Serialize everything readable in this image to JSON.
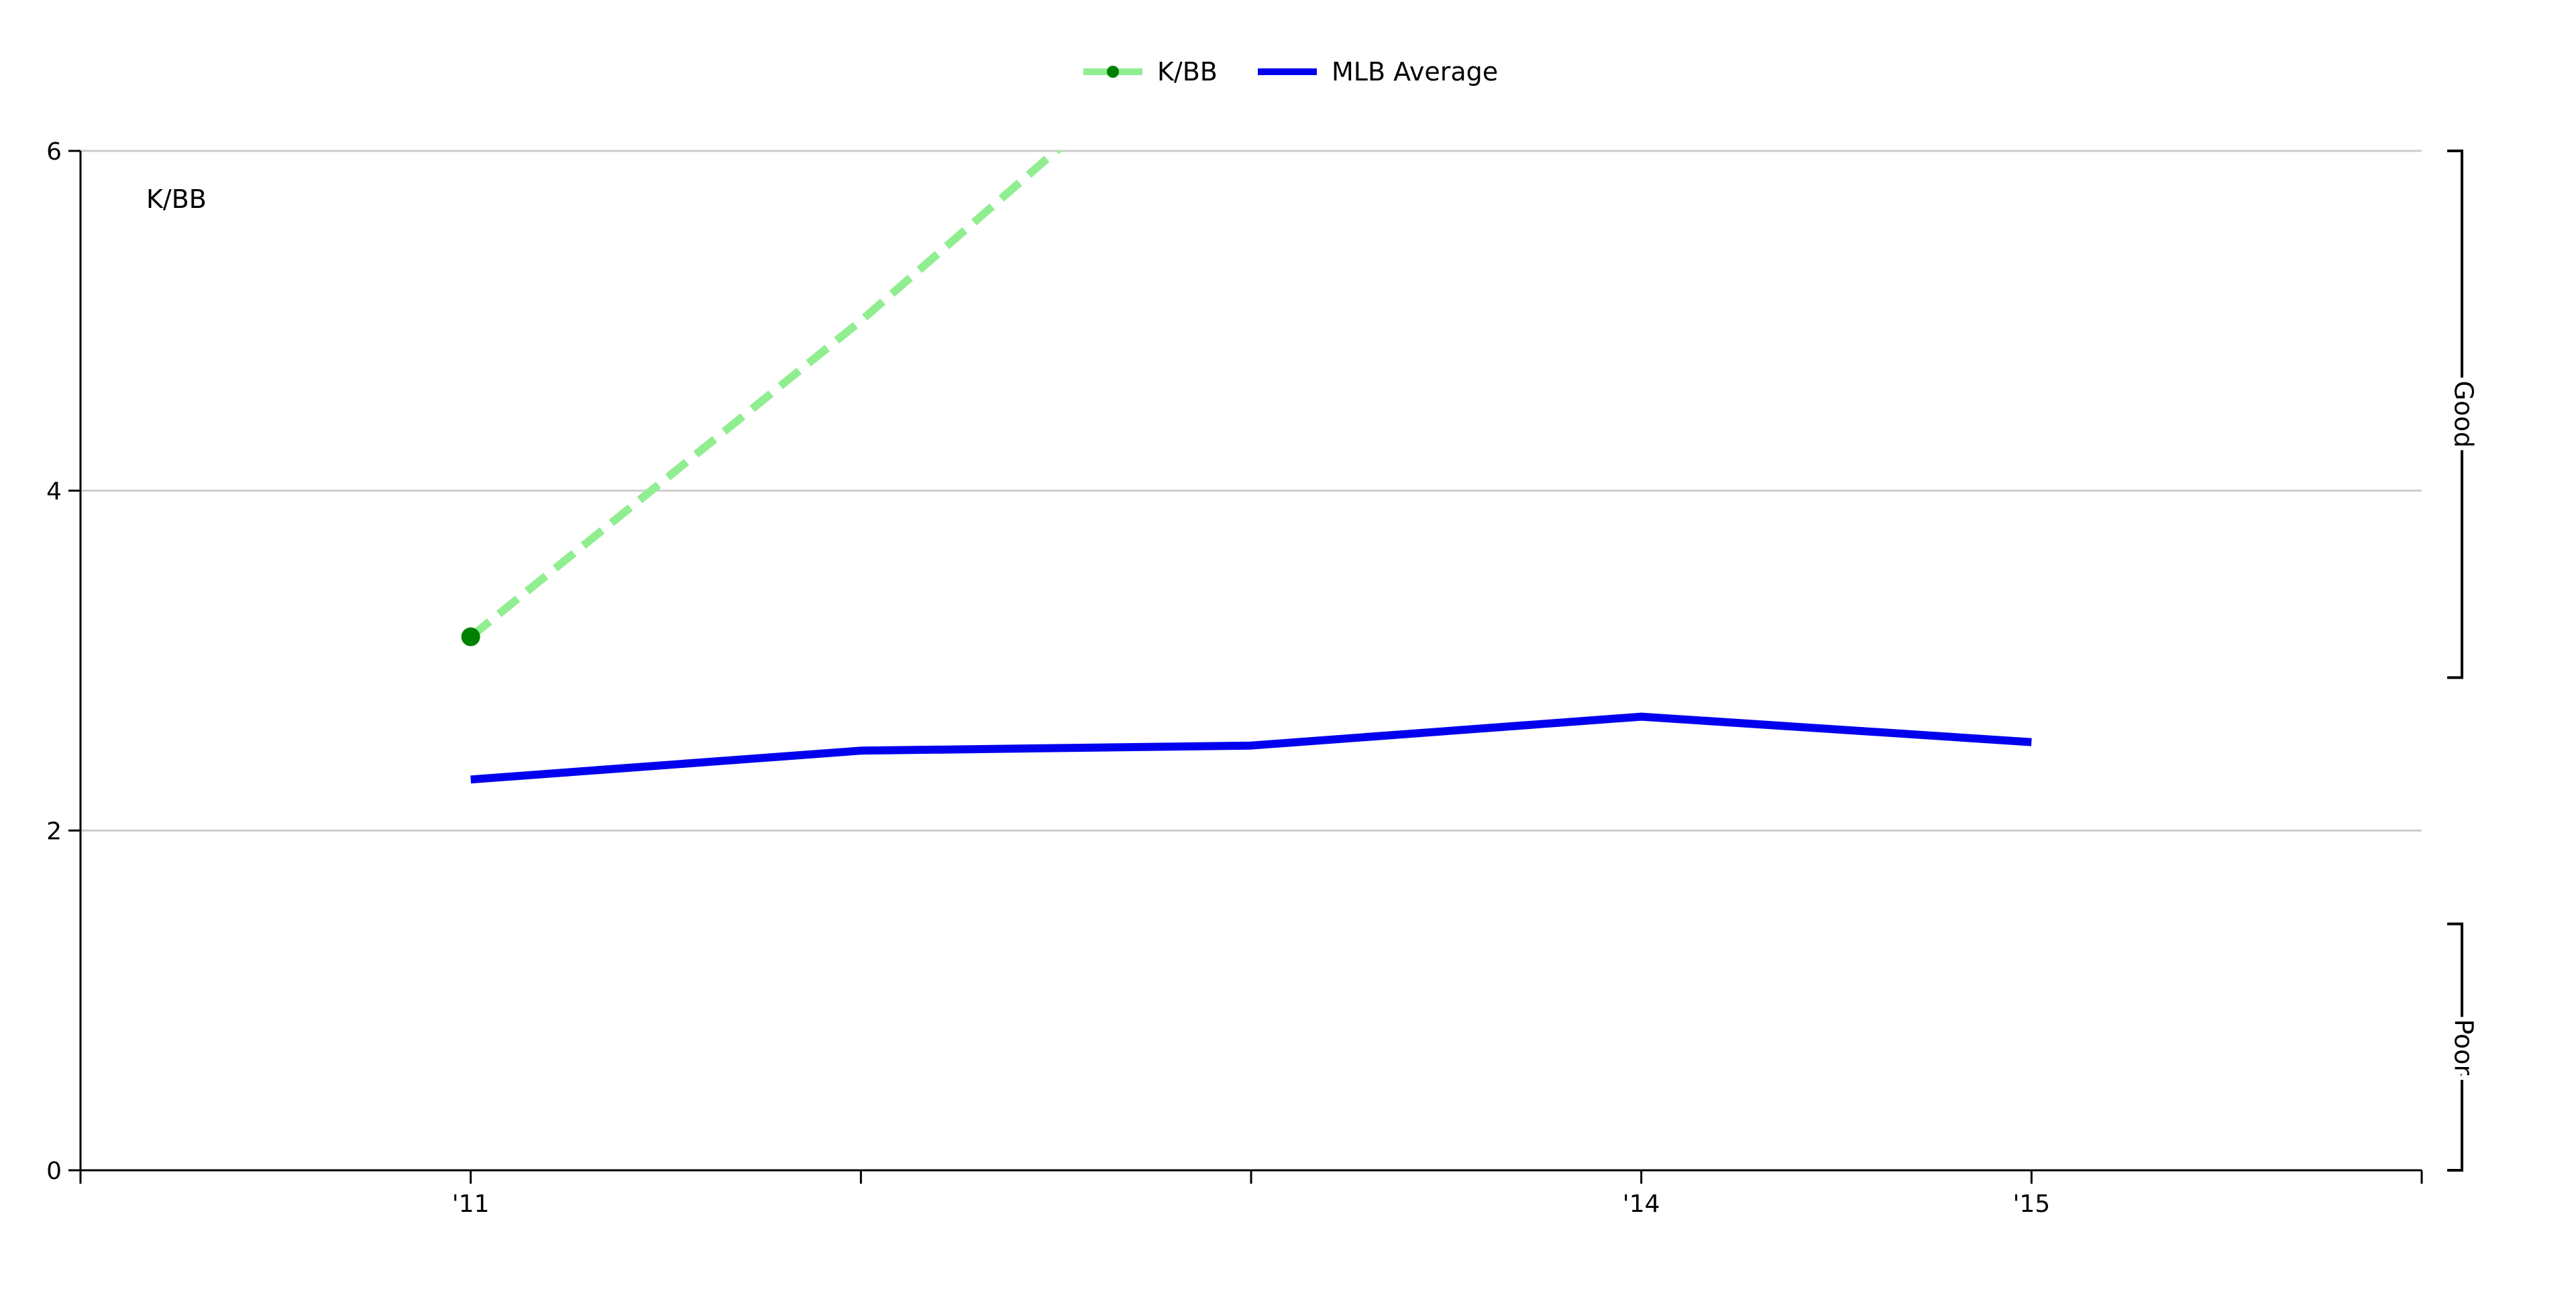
{
  "chart_data": {
    "type": "line",
    "title": "",
    "ylabel": "K/BB",
    "xlabel": "",
    "ylim": [
      0,
      6
    ],
    "xlim": [
      2010,
      2016
    ],
    "grid": true,
    "legend_placement": "top-center",
    "x_ticks": [
      {
        "value": 2010,
        "label": ""
      },
      {
        "value": 2011,
        "label": "'11"
      },
      {
        "value": 2012,
        "label": ""
      },
      {
        "value": 2013,
        "label": ""
      },
      {
        "value": 2014,
        "label": "'14"
      },
      {
        "value": 2015,
        "label": "'15"
      },
      {
        "value": 2016,
        "label": ""
      }
    ],
    "y_ticks": [
      {
        "value": 0,
        "label": "0"
      },
      {
        "value": 2,
        "label": "2"
      },
      {
        "value": 4,
        "label": "4"
      },
      {
        "value": 6,
        "label": "6"
      }
    ],
    "gridlines_y": [
      2,
      4,
      6
    ],
    "series": [
      {
        "name": "K/BB",
        "color": "#90EE90",
        "marker_color": "#008000",
        "dashed": true,
        "points": [
          {
            "x": 2011,
            "y": 3.14
          },
          {
            "x": 2012,
            "y": 5.0
          },
          {
            "x": 2013,
            "y": 7.0
          }
        ],
        "markers": [
          {
            "x": 2011,
            "y": 3.14
          }
        ]
      },
      {
        "name": "MLB Average",
        "color": "#0000EE",
        "dashed": false,
        "points": [
          {
            "x": 2011,
            "y": 2.3
          },
          {
            "x": 2012,
            "y": 2.47
          },
          {
            "x": 2013,
            "y": 2.5
          },
          {
            "x": 2014,
            "y": 2.67
          },
          {
            "x": 2015,
            "y": 2.52
          }
        ]
      }
    ],
    "bands": [
      {
        "label": "Good",
        "from": 2.9,
        "to": 6.0
      },
      {
        "label": "Poor",
        "from": 0.0,
        "to": 1.45
      }
    ]
  }
}
